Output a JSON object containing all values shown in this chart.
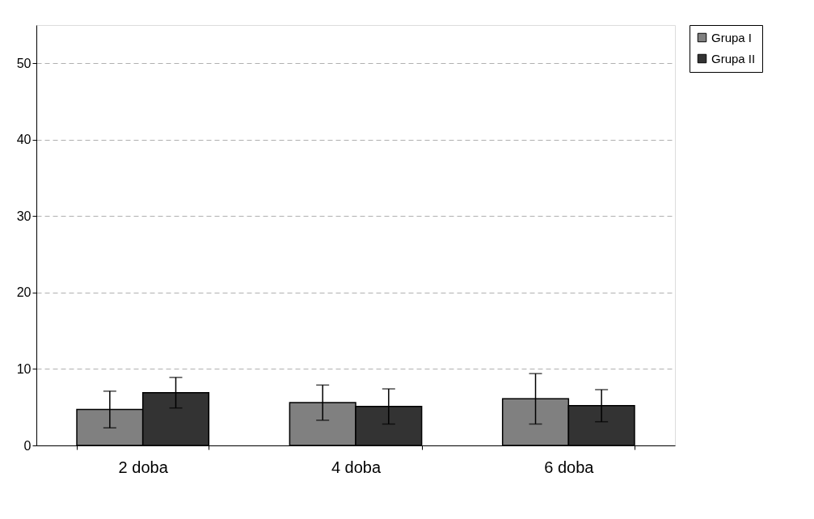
{
  "chart_data": {
    "type": "bar",
    "categories": [
      "2 doba",
      "4 doba",
      "6 doba"
    ],
    "series": [
      {
        "name": "Grupa I",
        "color": "#808080",
        "values": [
          4.7,
          5.6,
          6.1
        ],
        "errors": [
          2.4,
          2.3,
          3.3
        ]
      },
      {
        "name": "Grupa II",
        "color": "#333333",
        "values": [
          6.9,
          5.1,
          5.2
        ],
        "errors": [
          2.0,
          2.3,
          2.1
        ]
      }
    ],
    "ylim": [
      0,
      55
    ],
    "yticks": [
      0,
      10,
      20,
      30,
      40,
      50
    ],
    "grid": "y",
    "legend": "right"
  }
}
